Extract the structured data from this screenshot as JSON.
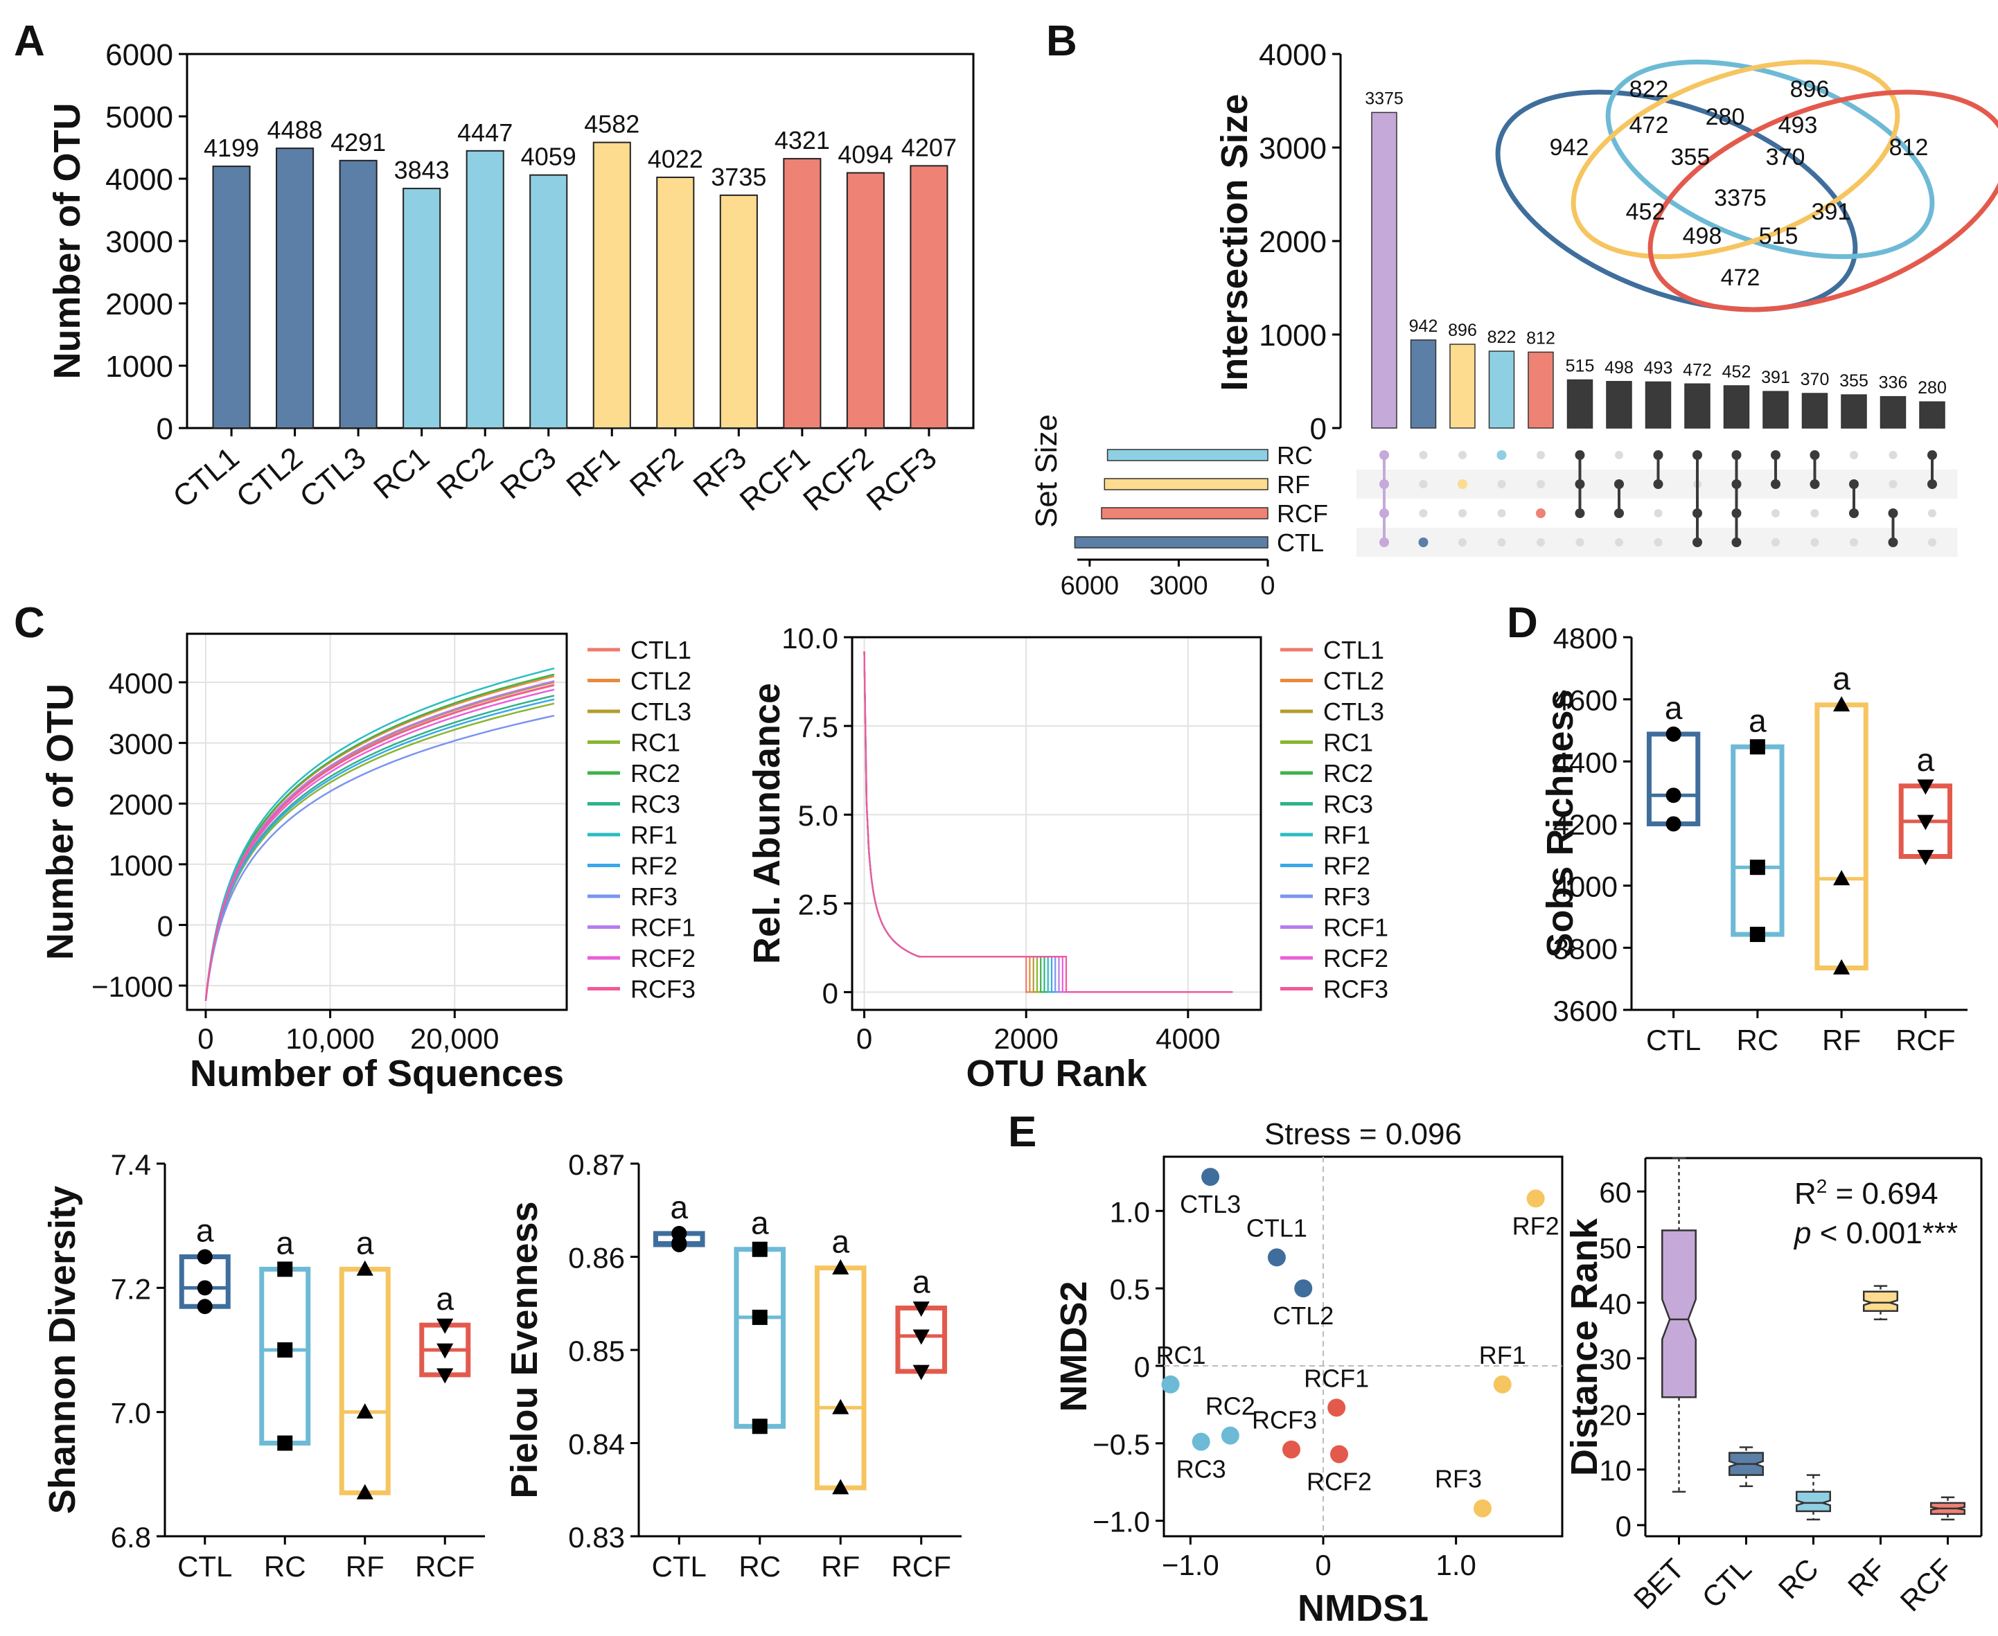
{
  "panels": {
    "a": "A",
    "b": "B",
    "c": "C",
    "d": "D",
    "e": "E"
  },
  "colors": {
    "CTL": "#5b7fa6",
    "RC": "#8ecfe3",
    "RF": "#fddb8f",
    "RCF": "#ee8275",
    "CTL_dark": "#3f6e9c",
    "RC_dark": "#6dbad6",
    "RF_dark": "#f6c560",
    "RCF_dark": "#e35a4d",
    "BET": "#c5a9d9",
    "SHARED": "#3a3a3a"
  },
  "chart_data": [
    {
      "id": "A",
      "type": "bar",
      "title": "",
      "ylabel": "Number of OTU",
      "ylim": [
        0,
        6000
      ],
      "yticks": [
        0,
        1000,
        2000,
        3000,
        4000,
        5000,
        6000
      ],
      "categories": [
        "CTL1",
        "CTL2",
        "CTL3",
        "RC1",
        "RC2",
        "RC3",
        "RF1",
        "RF2",
        "RF3",
        "RCF1",
        "RCF2",
        "RCF3"
      ],
      "values": [
        4199,
        4488,
        4291,
        3843,
        4447,
        4059,
        4582,
        4022,
        3735,
        4321,
        4094,
        4207
      ],
      "groups": [
        "CTL",
        "CTL",
        "CTL",
        "RC",
        "RC",
        "RC",
        "RF",
        "RF",
        "RF",
        "RCF",
        "RCF",
        "RCF"
      ]
    },
    {
      "id": "B",
      "type": "upset",
      "ylabel": "Intersection Size",
      "ylim": [
        0,
        4000
      ],
      "yticks": [
        0,
        1000,
        2000,
        3000,
        4000
      ],
      "values": [
        3375,
        942,
        896,
        822,
        812,
        515,
        498,
        493,
        472,
        452,
        391,
        370,
        355,
        336,
        280
      ],
      "colors": [
        "BET",
        "CTL",
        "RF",
        "RC",
        "RCF",
        "SHARED",
        "SHARED",
        "SHARED",
        "SHARED",
        "SHARED",
        "SHARED",
        "SHARED",
        "SHARED",
        "SHARED",
        "SHARED"
      ],
      "sets": [
        "RC",
        "RF",
        "RCF",
        "CTL"
      ],
      "membership": [
        [
          0,
          1,
          2,
          3
        ],
        [
          3
        ],
        [
          1
        ],
        [
          0
        ],
        [
          2
        ],
        [
          0,
          1,
          2
        ],
        [
          1,
          2
        ],
        [
          0,
          1
        ],
        [
          0,
          2,
          3
        ],
        [
          0,
          1,
          2,
          3
        ],
        [
          0,
          1
        ],
        [
          0,
          1
        ],
        [
          1,
          2
        ],
        [
          2,
          3
        ],
        [
          0,
          1
        ]
      ],
      "set_size_label": "Set Size",
      "set_size_ticks": [
        "6000",
        "3000",
        "0"
      ],
      "set_sizes": {
        "RC": 5400,
        "RF": 5500,
        "RCF": 5600,
        "CTL": 6500
      },
      "venn_labels": [
        "942",
        "822",
        "896",
        "812",
        "472",
        "280",
        "493",
        "355",
        "370",
        "3375",
        "452",
        "391",
        "498",
        "515",
        "472"
      ]
    },
    {
      "id": "C1",
      "type": "line",
      "title": "",
      "xlabel": "Number of Squences",
      "ylabel": "Number of OTU",
      "xlim": [
        -1500,
        29000
      ],
      "ylim": [
        -1400,
        4800
      ],
      "xticks": [
        0,
        10000,
        20000
      ],
      "xtick_labels": [
        "0",
        "10,000",
        "20,000"
      ],
      "yticks": [
        -1000,
        0,
        1000,
        2000,
        3000,
        4000
      ],
      "ytick_labels": [
        "−1000",
        "0",
        "1000",
        "2000",
        "3000",
        "4000"
      ],
      "series": [
        {
          "name": "CTL1",
          "color": "#f07b6e",
          "end": 3950
        },
        {
          "name": "CTL2",
          "color": "#e88a3a",
          "end": 4100
        },
        {
          "name": "CTL3",
          "color": "#b49b2c",
          "end": 4000
        },
        {
          "name": "RC1",
          "color": "#8ab52f",
          "end": 3650
        },
        {
          "name": "RC2",
          "color": "#3cb34a",
          "end": 4130
        },
        {
          "name": "RC3",
          "color": "#2eb38a",
          "end": 3780
        },
        {
          "name": "RF1",
          "color": "#2bbcc4",
          "end": 4230
        },
        {
          "name": "RF2",
          "color": "#3aa8e8",
          "end": 3720
        },
        {
          "name": "RF3",
          "color": "#7b94f0",
          "end": 3450
        },
        {
          "name": "RCF1",
          "color": "#b57cf0",
          "end": 4020
        },
        {
          "name": "RCF2",
          "color": "#ea5fd8",
          "end": 3880
        },
        {
          "name": "RCF3",
          "color": "#f05a9a",
          "end": 3960
        }
      ]
    },
    {
      "id": "C2",
      "type": "line",
      "title": "",
      "xlabel": "OTU Rank",
      "ylabel": "Rel. Abundance",
      "xlim": [
        -150,
        4900
      ],
      "ylim": [
        -0.5,
        10
      ],
      "xticks": [
        0,
        2000,
        4000
      ],
      "yticks": [
        0,
        2.5,
        5.0,
        7.5,
        10.0
      ],
      "ytick_labels": [
        "0",
        "2.5",
        "5.0",
        "7.5",
        "10.0"
      ]
    },
    {
      "id": "D1",
      "type": "box",
      "ylabel": "Sobs Richness",
      "ylim": [
        3600,
        4800
      ],
      "yticks": [
        3600,
        3800,
        4000,
        4200,
        4400,
        4600,
        4800
      ],
      "categories": [
        "CTL",
        "RC",
        "RF",
        "RCF"
      ],
      "points": [
        [
          4199,
          4291,
          4488
        ],
        [
          3843,
          4059,
          4447
        ],
        [
          3735,
          4022,
          4582
        ],
        [
          4094,
          4207,
          4321
        ]
      ],
      "markers": [
        "circle",
        "square",
        "triangle-up",
        "triangle-down"
      ],
      "letters": [
        "a",
        "a",
        "a",
        "a"
      ]
    },
    {
      "id": "D2",
      "type": "box",
      "ylabel": "Shannon Diversity",
      "ylim": [
        6.8,
        7.4
      ],
      "yticks": [
        6.8,
        7.0,
        7.2,
        7.4
      ],
      "ytick_labels": [
        "6.8",
        "7.0",
        "7.2",
        "7.4"
      ],
      "categories": [
        "CTL",
        "RC",
        "RF",
        "RCF"
      ],
      "points": [
        [
          7.17,
          7.2,
          7.25
        ],
        [
          6.95,
          7.1,
          7.23
        ],
        [
          6.87,
          7.0,
          7.23
        ],
        [
          7.06,
          7.1,
          7.14
        ]
      ],
      "markers": [
        "circle",
        "square",
        "triangle-up",
        "triangle-down"
      ],
      "letters": [
        "a",
        "a",
        "a",
        "a"
      ]
    },
    {
      "id": "D3",
      "type": "box",
      "ylabel": "Pielou Evenness",
      "ylim": [
        0.83,
        0.87
      ],
      "yticks": [
        0.83,
        0.84,
        0.85,
        0.86,
        0.87
      ],
      "ytick_labels": [
        "0.83",
        "0.84",
        "0.85",
        "0.86",
        "0.87"
      ],
      "categories": [
        "CTL",
        "RC",
        "RF",
        "RCF"
      ],
      "points": [
        [
          0.8613,
          0.8615,
          0.8625
        ],
        [
          0.8418,
          0.8535,
          0.8608
        ],
        [
          0.8352,
          0.8438,
          0.8588
        ],
        [
          0.8477,
          0.8515,
          0.8545
        ]
      ],
      "markers": [
        "circle",
        "square",
        "triangle-up",
        "triangle-down"
      ],
      "letters": [
        "a",
        "a",
        "a",
        "a"
      ]
    },
    {
      "id": "E1",
      "type": "scatter",
      "title": "Stress = 0.096",
      "xlabel": "NMDS1",
      "ylabel": "NMDS2",
      "xlim": [
        -1.2,
        1.8
      ],
      "ylim": [
        -1.1,
        1.35
      ],
      "xticks": [
        -1.0,
        0,
        1.0
      ],
      "xtick_labels": [
        "−1.0",
        "0",
        "1.0"
      ],
      "yticks": [
        -1.0,
        -0.5,
        0,
        0.5,
        1.0
      ],
      "ytick_labels": [
        "−1.0",
        "−0.5",
        "0",
        "0.5",
        "1.0"
      ],
      "points": [
        {
          "label": "CTL3",
          "x": -0.85,
          "y": 1.22,
          "group": "CTL"
        },
        {
          "label": "CTL1",
          "x": -0.35,
          "y": 0.7,
          "group": "CTL"
        },
        {
          "label": "CTL2",
          "x": -0.15,
          "y": 0.5,
          "group": "CTL"
        },
        {
          "label": "RF2",
          "x": 1.6,
          "y": 1.08,
          "group": "RF"
        },
        {
          "label": "RF1",
          "x": 1.35,
          "y": -0.12,
          "group": "RF"
        },
        {
          "label": "RF3",
          "x": 1.2,
          "y": -0.92,
          "group": "RF"
        },
        {
          "label": "RC1",
          "x": -1.15,
          "y": -0.12,
          "group": "RC"
        },
        {
          "label": "RC2",
          "x": -0.7,
          "y": -0.45,
          "group": "RC"
        },
        {
          "label": "RC3",
          "x": -0.92,
          "y": -0.49,
          "group": "RC"
        },
        {
          "label": "RCF1",
          "x": 0.1,
          "y": -0.27,
          "group": "RCF"
        },
        {
          "label": "RCF3",
          "x": -0.24,
          "y": -0.54,
          "group": "RCF"
        },
        {
          "label": "RCF2",
          "x": 0.12,
          "y": -0.57,
          "group": "RCF"
        }
      ]
    },
    {
      "id": "E2",
      "type": "box",
      "ylabel": "Distance Rank",
      "ylim": [
        -2,
        66
      ],
      "yticks": [
        0,
        10,
        20,
        30,
        40,
        50,
        60
      ],
      "categories": [
        "BET",
        "CTL",
        "RC",
        "RF",
        "RCF"
      ],
      "stats": [
        [
          6,
          23,
          37,
          53,
          66
        ],
        [
          7,
          9,
          11,
          13,
          14
        ],
        [
          1,
          2.5,
          4,
          6,
          9
        ],
        [
          37,
          38.5,
          40,
          42,
          43
        ],
        [
          1,
          2,
          3,
          4,
          5
        ]
      ],
      "annotation_r2_prefix": "R",
      "annotation_r2_sup": "2",
      "annotation_r2_value": " = 0.694",
      "annotation_p_italic": "p",
      "annotation_p_rest": " < 0.001***"
    }
  ]
}
